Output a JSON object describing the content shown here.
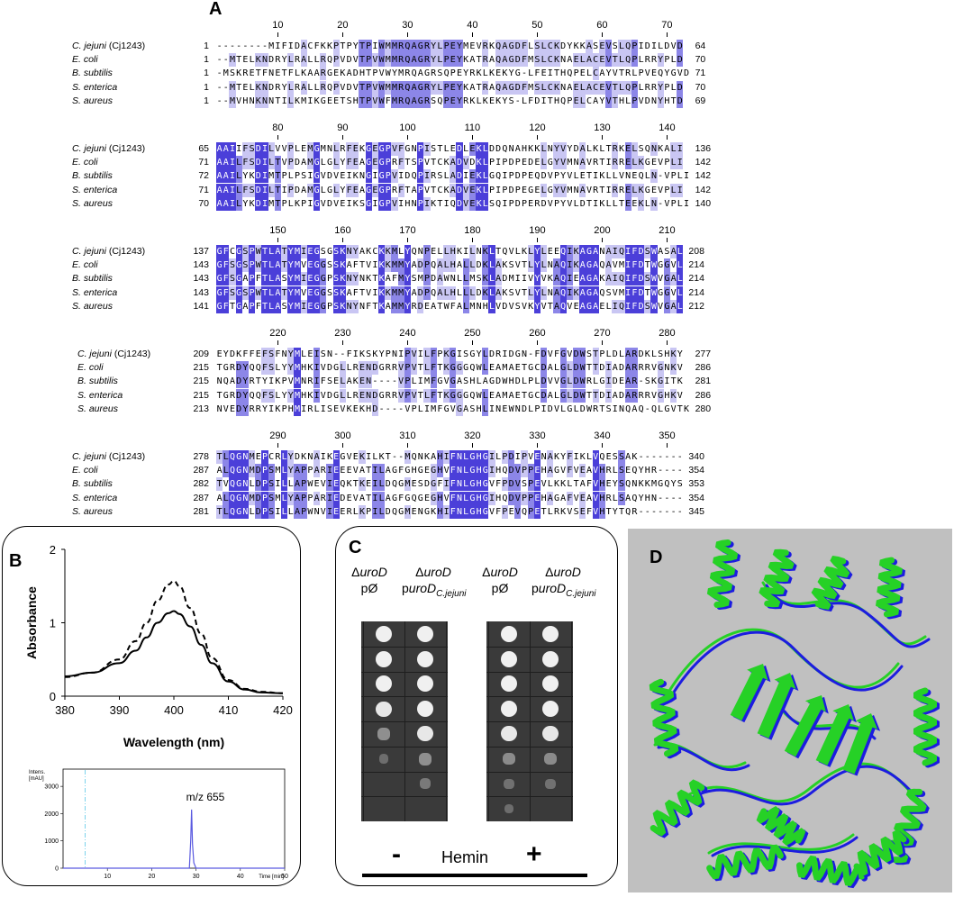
{
  "panels": {
    "a": "A",
    "b": "B",
    "c": "C",
    "d": "D"
  },
  "alignment": {
    "species": [
      {
        "name": "C. jejuni",
        "suffix": " (Cj1243)"
      },
      {
        "name": "E. coli",
        "suffix": ""
      },
      {
        "name": "B. subtilis",
        "suffix": ""
      },
      {
        "name": "S. enterica",
        "suffix": ""
      },
      {
        "name": "S. aureus",
        "suffix": ""
      }
    ],
    "blocks": [
      {
        "ruler": [
          "10",
          "20",
          "30",
          "40",
          "50",
          "60",
          "70"
        ],
        "starts": [
          "1",
          "1",
          "1",
          "1",
          "1"
        ],
        "ends": [
          "64",
          "70",
          "71",
          "70",
          "69"
        ],
        "seqs": [
          "--------MIFIDACFKKPTPYTPIWMMRQAGRYLPEYMEVRKQAGDFLSLCKDYKKASEVSLQPIDILDVD",
          "--MTELKNDRYLRALLRQPVDVTPVWMMRQAGRYLPEYKATRAQAGDFMSLCKNAELACEVTLQPLRRYPLD",
          "-MSKRETFNETFLKAARGEKADHTPVWYMRQAGRSQPEYRKLKEKYG-LFEITHQPELCAYVTRLPVEQYGVD",
          "--MTELKNDRYLRALLRQPVDVTPVWMMRQAGRYLPEYKATRAQAGDFMSLCKNAELACEVTLQPLRRYPLD",
          "--MVHNKNNTILKMIKGEETSHTPVWFMRQAGRSQPEYRKLKEKYS-LFDITHQPELCAYVTHLPVDNYHTD"
        ]
      },
      {
        "ruler": [
          "80",
          "90",
          "100",
          "110",
          "120",
          "130",
          "140"
        ],
        "starts": [
          "65",
          "71",
          "72",
          "71",
          "70"
        ],
        "ends": [
          "136",
          "142",
          "142",
          "142",
          "140"
        ],
        "seqs": [
          "AAIIFSDILVVPLEMGMNLRFEKGEGPVFGNPISTLEDLEKLDDQNAHKKLNYVYDALKLTRKELSQNKALI",
          "AAILFSDILTVPDAMGLGLYFEAGEGPRFTSPVTCKADVDKLPIPDPEDELGYVMNAVRTIRRELKGEVPLI",
          "AAILYKDIMTPLPSIGVDVEIKNGIGPVIDQPIRSLADIEKLGQIPDPEQDVPYVLETIKLLVNEQLN-VPLI",
          "AAILFSDILTIPDAMGLGLYFEAGEGPRFTAPVTCKADVEKLPIPDPEGELGYVMNAVRTIRRELKGEVPLI",
          "AAILYKDIMTPLKPIGVDVEIKSGIGPVIHNPIKTIQDVEKLSQIPDPERDVPYVLDTIKLLTEEKLN-VPLI"
        ]
      },
      {
        "ruler": [
          "150",
          "160",
          "170",
          "180",
          "190",
          "200",
          "210"
        ],
        "starts": [
          "137",
          "143",
          "143",
          "143",
          "141"
        ],
        "ends": [
          "208",
          "214",
          "214",
          "214",
          "212"
        ],
        "seqs": [
          "GFCGSPWTLATYMIEGSGSKNYAKCKKMLYQNPELLHKILNKLTQVLKLYLEEQIKAGANAIQIFDSWASAL",
          "GFSGSPWTLATYMVEGGSSKAFTVIKKMMYADPQALHALLDKLAKSVTLYLNAQIKAGAQAVMIFDTWGGVL",
          "GFSGAPFTLASYMIEGGPSKNYNKTKAFMYSMPDAWNLLMSKLADMIIVYVKAQIEAGAKAIQIFDSWVGAL",
          "GFSGSPWTLATYMVEGGSSKAFTVIKKMMYADPQALHLLLDKLAKSVTLYLNAQIKAGAQSVMIFDTWGGVL",
          "GFTGAPFTLASYMIEGGPSKNYNFTKAMMYRDEATWFALMNHLVDVSVKYVTAQVEAGAELIQIFDSWVGAL"
        ]
      },
      {
        "ruler": [
          "220",
          "230",
          "240",
          "250",
          "260",
          "270",
          "280"
        ],
        "starts": [
          "209",
          "215",
          "215",
          "215",
          "213"
        ],
        "ends": [
          "277",
          "286",
          "281",
          "286",
          "280"
        ],
        "seqs": [
          "EYDKFFEFSFNYMLEISN--FIKSKYPNIPVILFPKGISGYLDRIDGN-FDVFGVDWSTPLDLARDKLSHKY",
          "TGRDYQQFSLYYMHKIVDGLLRENDGRRVPVTLFTKGGGQWLEAMAETGCDALGLDWTTDIADARRRVGNKV",
          "NQADYRTYIKPVMNRIFSELAKEN----VPLIMFGVGASHLAGDWHDLPLDVVGLDWRLGIDEAR-SKGITK",
          "TGRDYQQFSLYYMHKIVDGLLRENDGRRVPVTLFTKGGGQWLEAMAETGCDALGLDWTTDIADARRRVGHKV",
          "NVEDYRRYIKPHMIRLISEVKEKHD----VPLIMFGVGASHLINEWNDLPIDVLGLDWRTSINQAQ-QLGVTK"
        ]
      },
      {
        "ruler": [
          "290",
          "300",
          "310",
          "320",
          "330",
          "340",
          "350"
        ],
        "starts": [
          "278",
          "287",
          "282",
          "287",
          "281"
        ],
        "ends": [
          "340",
          "354",
          "353",
          "354",
          "345"
        ],
        "seqs": [
          "TLQGNMEPCRLYDKNAIKEGVEKILKT--MQNKAHIFNLGHGILPDIPVENAKYFIKLVQESSAK-------",
          "ALQGNMDPSMLYAPPARIEEEVATILAGFGHGEGHVFNLGHGIHQDVPPEHAGVFVEAVHRLSEQYHR----",
          "TVQGNLDPSILLAPWEVIEQKTKEILDQGMESDGFIFNLGHGVFPDVSPEVLKKLTAFVHEYSQNKKMGQYS",
          "ALQGNMDPSMLYAPPARIEDEVATILAGFGQGEGHVFNLGHGIHQDVPPEHAGAFVEAVHRLSAQYHN----",
          "TLQGNLDPSILLAPWNVIEERLKPILDQGMENGKHIFNLGHGVFPEVQPETLRKVSEFVHTYTQR-------"
        ]
      }
    ]
  },
  "panelB": {
    "chart_data": {
      "type": "line",
      "xlabel": "Wavelength (nm)",
      "ylabel": "Absorbance",
      "xlim": [
        380,
        420
      ],
      "ylim": [
        0,
        2
      ],
      "xticks": [
        "380",
        "390",
        "400",
        "410",
        "420"
      ],
      "yticks": [
        "0",
        "1",
        "2"
      ],
      "series": [
        {
          "style": "solid",
          "x": [
            380,
            385,
            390,
            393,
            395,
            397,
            399,
            400,
            401,
            403,
            405,
            407,
            410,
            413,
            416,
            420
          ],
          "y": [
            0.27,
            0.32,
            0.45,
            0.62,
            0.8,
            1.0,
            1.13,
            1.16,
            1.12,
            0.95,
            0.7,
            0.45,
            0.2,
            0.09,
            0.05,
            0.04
          ]
        },
        {
          "style": "dashed",
          "x": [
            380,
            385,
            390,
            393,
            395,
            397,
            399,
            400,
            401,
            403,
            405,
            407,
            410,
            413,
            416,
            420
          ],
          "y": [
            0.26,
            0.32,
            0.5,
            0.75,
            1.0,
            1.3,
            1.52,
            1.57,
            1.5,
            1.2,
            0.85,
            0.52,
            0.22,
            0.1,
            0.06,
            0.04
          ]
        }
      ]
    },
    "hplc": {
      "chart_data": {
        "type": "line",
        "ylabel_line1": "Intens.",
        "ylabel_line2": "[mAU]",
        "xunit": "Time [min]",
        "xlim": [
          0,
          50
        ],
        "ylim": [
          0,
          3500
        ],
        "xticks": [
          "10",
          "20",
          "30",
          "40",
          "50"
        ],
        "yticks": [
          "0",
          "1000",
          "2000",
          "3000"
        ],
        "peak_label": "m/z 655",
        "series": [
          {
            "x": [
              0,
              28.5,
              28.8,
              29.0,
              29.2,
              29.5,
              30.0,
              50
            ],
            "y": [
              0,
              0,
              1000,
              2150,
              900,
              200,
              0,
              0
            ]
          }
        ]
      }
    }
  },
  "panelC": {
    "strains": [
      {
        "lines": [
          "ΔuroD",
          "pØ"
        ]
      },
      {
        "lines": [
          "ΔuroD",
          "puroD"
        ],
        "subscript": "C.jejuni"
      },
      {
        "lines": [
          "ΔuroD",
          "pØ"
        ]
      },
      {
        "lines": [
          "ΔuroD",
          "puroD"
        ],
        "subscript": "C.jejuni"
      }
    ],
    "minus": "-",
    "hemin": "Hemin",
    "plus": "+"
  },
  "colors": {
    "strong": "#4b3fd9",
    "medium": "#8c86e8",
    "light": "#c9c6f3",
    "helix_blue": "#1c1ce0",
    "helix_green": "#26d126",
    "plate_bg": "#3a3a3a",
    "hplc_trace": "#5a5ae0"
  }
}
